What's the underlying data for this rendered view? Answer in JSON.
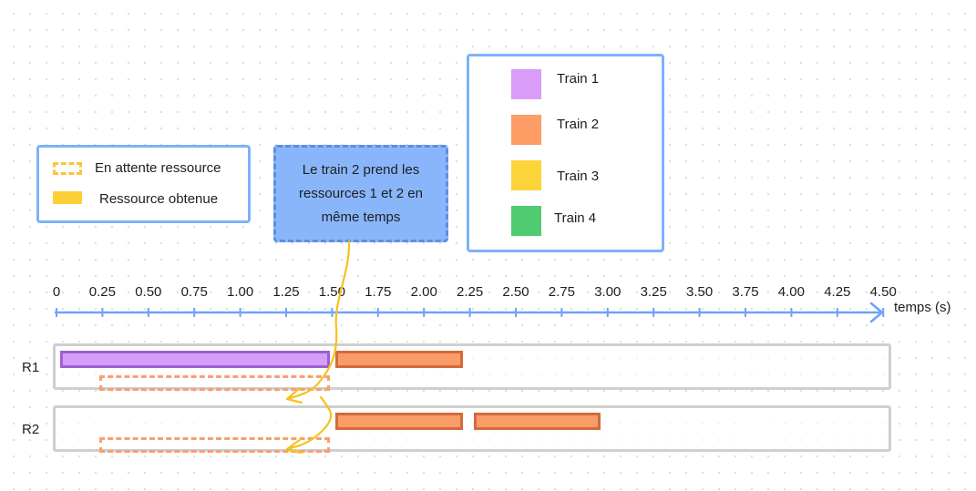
{
  "legend": {
    "waiting_label": "En attente ressource",
    "obtained_label": "Ressource obtenue"
  },
  "note": {
    "text": "Le train 2 prend les ressources 1 et 2 en même temps"
  },
  "trains": [
    {
      "label": "Train 1",
      "color": "#d99cf9"
    },
    {
      "label": "Train 2",
      "color": "#fd9c64"
    },
    {
      "label": "Train 3",
      "color": "#fdd33a"
    },
    {
      "label": "Train 4",
      "color": "#4fcb71"
    }
  ],
  "axis": {
    "title": "temps (s)",
    "ticks": [
      "0",
      "0.25",
      "0.50",
      "0.75",
      "1.00",
      "1.25",
      "1.50",
      "1.75",
      "2.00",
      "2.25",
      "2.50",
      "2.75",
      "3.00",
      "3.25",
      "3.50",
      "3.75",
      "4.00",
      "4.25",
      "4.50"
    ]
  },
  "rows": [
    {
      "label": "R1",
      "bars": [
        {
          "train": "train1",
          "start": 0.0,
          "end": 1.48
        },
        {
          "train": "train2",
          "start": 1.5,
          "end": 2.2
        }
      ],
      "waits": [
        {
          "train": "train2",
          "start": 0.22,
          "end": 1.48
        }
      ]
    },
    {
      "label": "R2",
      "bars": [
        {
          "train": "train2",
          "start": 1.5,
          "end": 2.2
        },
        {
          "train": "train2",
          "start": 2.25,
          "end": 2.95
        }
      ],
      "waits": [
        {
          "train": "train2",
          "start": 0.22,
          "end": 1.48
        }
      ]
    }
  ],
  "colors": {
    "axis": "#6ea2f7",
    "frame": "#cfcfcf",
    "connector": "#f6c21a"
  }
}
